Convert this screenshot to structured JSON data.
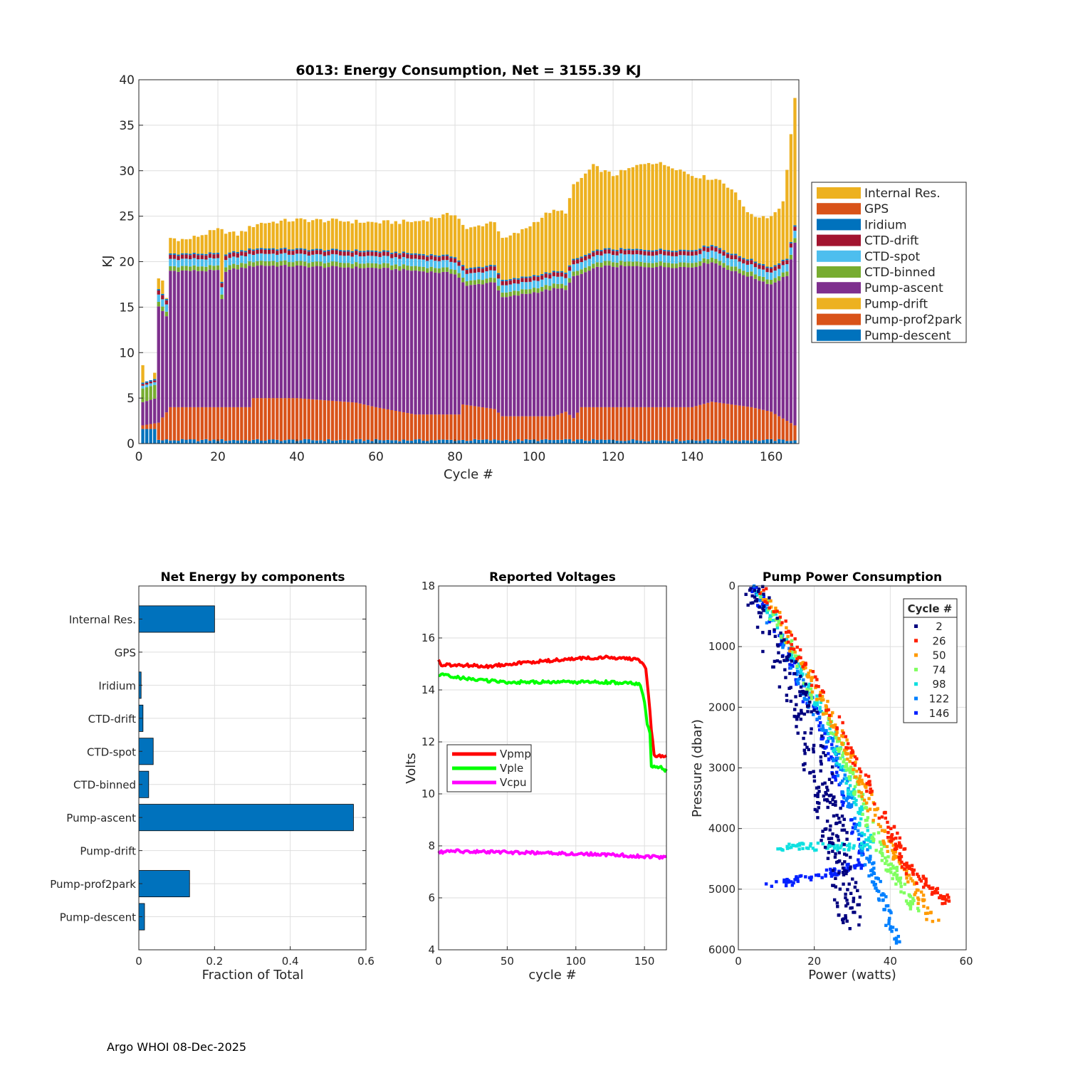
{
  "footer": "Argo WHOI 08-Dec-2025",
  "chart_data": [
    {
      "type": "bar",
      "stacked": true,
      "title": "6013: Energy Consumption,  Net = 3155.39 KJ",
      "xlabel": "Cycle #",
      "ylabel": "KJ",
      "xlim": [
        0,
        167
      ],
      "ylim": [
        0,
        40
      ],
      "xticks": [
        0,
        20,
        40,
        60,
        80,
        100,
        120,
        140,
        160
      ],
      "yticks": [
        0,
        5,
        10,
        15,
        20,
        25,
        30,
        35,
        40
      ],
      "grid": true,
      "legend": "outside-right",
      "series": [
        {
          "name": "Internal Res.",
          "color": "#EDB120"
        },
        {
          "name": "GPS",
          "color": "#D95319"
        },
        {
          "name": "Iridium",
          "color": "#0072BD"
        },
        {
          "name": "CTD-drift",
          "color": "#A2142F"
        },
        {
          "name": "CTD-spot",
          "color": "#4DBEEE"
        },
        {
          "name": "CTD-binned",
          "color": "#77AC30"
        },
        {
          "name": "Pump-ascent",
          "color": "#7E2F8E"
        },
        {
          "name": "Pump-drift",
          "color": "#EDB120"
        },
        {
          "name": "Pump-prof2park",
          "color": "#D95319"
        },
        {
          "name": "Pump-descent",
          "color": "#0072BD"
        }
      ],
      "total_profile_knots": [
        [
          1,
          8.5
        ],
        [
          2,
          6.6
        ],
        [
          3,
          6.7
        ],
        [
          4,
          7.9
        ],
        [
          5,
          18
        ],
        [
          6,
          17.8
        ],
        [
          7,
          16
        ],
        [
          8,
          22.6
        ],
        [
          12,
          22.4
        ],
        [
          20,
          23.5
        ],
        [
          25,
          23
        ],
        [
          30,
          24.2
        ],
        [
          40,
          24.6
        ],
        [
          50,
          24.5
        ],
        [
          60,
          24.3
        ],
        [
          70,
          24.4
        ],
        [
          80,
          25.3
        ],
        [
          83,
          23.5
        ],
        [
          90,
          24.5
        ],
        [
          92,
          22.4
        ],
        [
          97,
          23.4
        ],
        [
          104,
          25.5
        ],
        [
          108,
          25.5
        ],
        [
          110,
          28.3
        ],
        [
          115,
          30.5
        ],
        [
          120,
          29.5
        ],
        [
          129,
          31
        ],
        [
          135,
          30.5
        ],
        [
          140,
          29.5
        ],
        [
          147,
          29
        ],
        [
          150,
          28
        ],
        [
          155,
          25
        ],
        [
          160,
          25
        ],
        [
          163,
          26.5
        ],
        [
          165,
          34
        ],
        [
          166,
          37.8
        ]
      ],
      "pump_ascent_top_knots": [
        [
          1,
          4.5
        ],
        [
          4,
          5
        ],
        [
          5,
          15
        ],
        [
          7,
          14
        ],
        [
          8,
          19
        ],
        [
          20,
          19
        ],
        [
          21,
          15.8
        ],
        [
          22,
          19
        ],
        [
          30,
          19.6
        ],
        [
          60,
          19.3
        ],
        [
          80,
          18.7
        ],
        [
          83,
          17.3
        ],
        [
          90,
          17.8
        ],
        [
          92,
          16
        ],
        [
          105,
          17
        ],
        [
          108,
          17
        ],
        [
          110,
          18.3
        ],
        [
          117,
          19.5
        ],
        [
          140,
          19.4
        ],
        [
          145,
          20
        ],
        [
          150,
          19
        ],
        [
          155,
          18.3
        ],
        [
          160,
          17.5
        ],
        [
          164,
          18.5
        ],
        [
          166,
          22
        ]
      ],
      "pump_prof2park_top_knots": [
        [
          1,
          2
        ],
        [
          5,
          2.3
        ],
        [
          8,
          4
        ],
        [
          28,
          4
        ],
        [
          29,
          5
        ],
        [
          40,
          5
        ],
        [
          55,
          4.5
        ],
        [
          60,
          4
        ],
        [
          70,
          3.2
        ],
        [
          81,
          3.2
        ],
        [
          82,
          4.3
        ],
        [
          90,
          3.8
        ],
        [
          92,
          3
        ],
        [
          105,
          3
        ],
        [
          108,
          3.5
        ],
        [
          110,
          2.8
        ],
        [
          112,
          4
        ],
        [
          140,
          4
        ],
        [
          145,
          4.6
        ],
        [
          155,
          4
        ],
        [
          160,
          3.5
        ],
        [
          166,
          2
        ]
      ]
    },
    {
      "type": "bar",
      "orientation": "horizontal",
      "title": "Net Energy by components",
      "xlabel": "Fraction of Total",
      "xlim": [
        0,
        0.6
      ],
      "xticks": [
        0,
        0.2,
        0.4,
        0.6
      ],
      "categories": [
        "Internal Res.",
        "GPS",
        "Iridium",
        "CTD-drift",
        "CTD-spot",
        "CTD-binned",
        "Pump-ascent",
        "Pump-drift",
        "Pump-prof2park",
        "Pump-descent"
      ],
      "values": [
        0.2,
        0.0,
        0.006,
        0.011,
        0.038,
        0.026,
        0.567,
        0.0,
        0.134,
        0.015
      ],
      "color": "#0072BD"
    },
    {
      "type": "line",
      "title": "Reported Voltages",
      "xlabel": "cycle #",
      "ylabel": "Volts",
      "xlim": [
        0,
        166
      ],
      "ylim": [
        4,
        18
      ],
      "xticks": [
        0,
        50,
        100,
        150
      ],
      "yticks": [
        4,
        6,
        8,
        10,
        12,
        14,
        16,
        18
      ],
      "legend": "middle-left",
      "series": [
        {
          "name": "Vpmp",
          "color": "#FF0000",
          "points": [
            [
              0,
              15.2
            ],
            [
              2,
              14.9
            ],
            [
              5,
              14.95
            ],
            [
              20,
              14.95
            ],
            [
              35,
              14.9
            ],
            [
              50,
              15.0
            ],
            [
              75,
              15.1
            ],
            [
              100,
              15.2
            ],
            [
              120,
              15.25
            ],
            [
              140,
              15.2
            ],
            [
              148,
              15.1
            ],
            [
              151,
              14.8
            ],
            [
              153,
              13.8
            ],
            [
              155,
              12.5
            ],
            [
              157,
              11.5
            ],
            [
              159,
              11.45
            ],
            [
              166,
              11.45
            ]
          ]
        },
        {
          "name": "Vple",
          "color": "#00FF00",
          "points": [
            [
              0,
              14.6
            ],
            [
              10,
              14.5
            ],
            [
              25,
              14.4
            ],
            [
              50,
              14.3
            ],
            [
              75,
              14.3
            ],
            [
              100,
              14.3
            ],
            [
              120,
              14.3
            ],
            [
              140,
              14.25
            ],
            [
              147,
              14.2
            ],
            [
              150,
              13.5
            ],
            [
              152,
              12.7
            ],
            [
              154,
              12.3
            ],
            [
              155,
              11.1
            ],
            [
              158,
              11.0
            ],
            [
              162,
              11.0
            ],
            [
              166,
              10.9
            ]
          ]
        },
        {
          "name": "Vcpu",
          "color": "#FF00FF",
          "points": [
            [
              0,
              7.75
            ],
            [
              10,
              7.8
            ],
            [
              50,
              7.75
            ],
            [
              100,
              7.7
            ],
            [
              130,
              7.65
            ],
            [
              166,
              7.55
            ]
          ]
        }
      ]
    },
    {
      "type": "scatter",
      "title": "Pump Power Consumption",
      "xlabel": "Power (watts)",
      "ylabel": "Pressure (dbar)",
      "xlim": [
        0,
        60
      ],
      "ylim": [
        6000,
        0
      ],
      "xticks": [
        0,
        20,
        40,
        60
      ],
      "yticks": [
        0,
        1000,
        2000,
        3000,
        4000,
        5000,
        6000
      ],
      "legend_title": "Cycle #",
      "legend": "top-right",
      "series": [
        {
          "name": "2",
          "color": "#00007F",
          "trend": [
            [
              3,
              0
            ],
            [
              17,
              2000
            ],
            [
              25,
              4000
            ],
            [
              30,
              5600
            ]
          ]
        },
        {
          "name": "26",
          "color": "#FF2000",
          "trend": [
            [
              6,
              0
            ],
            [
              28,
              2500
            ],
            [
              40,
              4000
            ],
            [
              45,
              4700
            ],
            [
              55,
              5200
            ]
          ]
        },
        {
          "name": "50",
          "color": "#FF9A00",
          "trend": [
            [
              6,
              0
            ],
            [
              27,
              2500
            ],
            [
              39,
              4200
            ],
            [
              52,
              5600
            ]
          ]
        },
        {
          "name": "74",
          "color": "#80FF60",
          "trend": [
            [
              5,
              0
            ],
            [
              26,
              2500
            ],
            [
              37,
              4300
            ],
            [
              47,
              5400
            ]
          ]
        },
        {
          "name": "98",
          "color": "#10E0E0",
          "trend": [
            [
              5,
              0
            ],
            [
              25,
              2500
            ],
            [
              35,
              4300
            ],
            [
              9,
              4300
            ]
          ]
        },
        {
          "name": "122",
          "color": "#0080FF",
          "trend": [
            [
              4,
              0
            ],
            [
              24,
              2500
            ],
            [
              34,
              4500
            ],
            [
              42,
              5900
            ]
          ]
        },
        {
          "name": "146",
          "color": "#0020FF",
          "trend": [
            [
              4,
              0
            ],
            [
              23,
              2500
            ],
            [
              33,
              4600
            ],
            [
              8,
              4950
            ]
          ]
        }
      ]
    }
  ]
}
